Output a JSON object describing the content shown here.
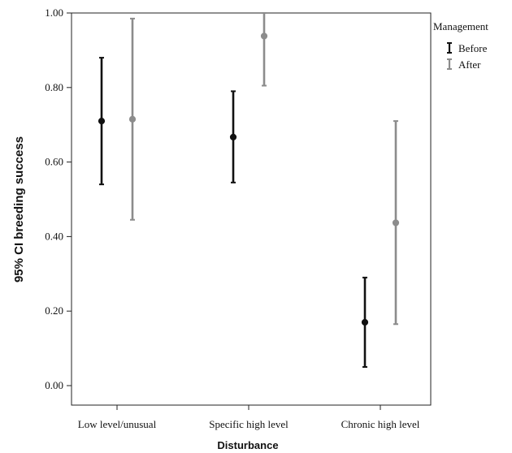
{
  "chart_data": {
    "type": "errorbar",
    "categories": [
      "Low level/unusual",
      "Specific high level",
      "Chronic high level"
    ],
    "xlabel": "Disturbance",
    "ylabel": "95% CI breeding success",
    "ylim": [
      0,
      1
    ],
    "yticks": [
      "0.00",
      "0.20",
      "0.40",
      "0.60",
      "0.80",
      "1.00"
    ],
    "legend": {
      "title": "Management",
      "placement": "top-right-outside"
    },
    "series": [
      {
        "name": "Before",
        "color": "#111111",
        "mean": [
          0.71,
          0.667,
          0.17
        ],
        "lower": [
          0.54,
          0.545,
          0.05
        ],
        "upper": [
          0.88,
          0.79,
          0.29
        ]
      },
      {
        "name": "After",
        "color": "#8c8c8c",
        "mean": [
          0.715,
          0.938,
          0.437
        ],
        "lower": [
          0.445,
          0.805,
          0.165
        ],
        "upper": [
          0.985,
          1.0,
          0.71
        ]
      }
    ]
  }
}
